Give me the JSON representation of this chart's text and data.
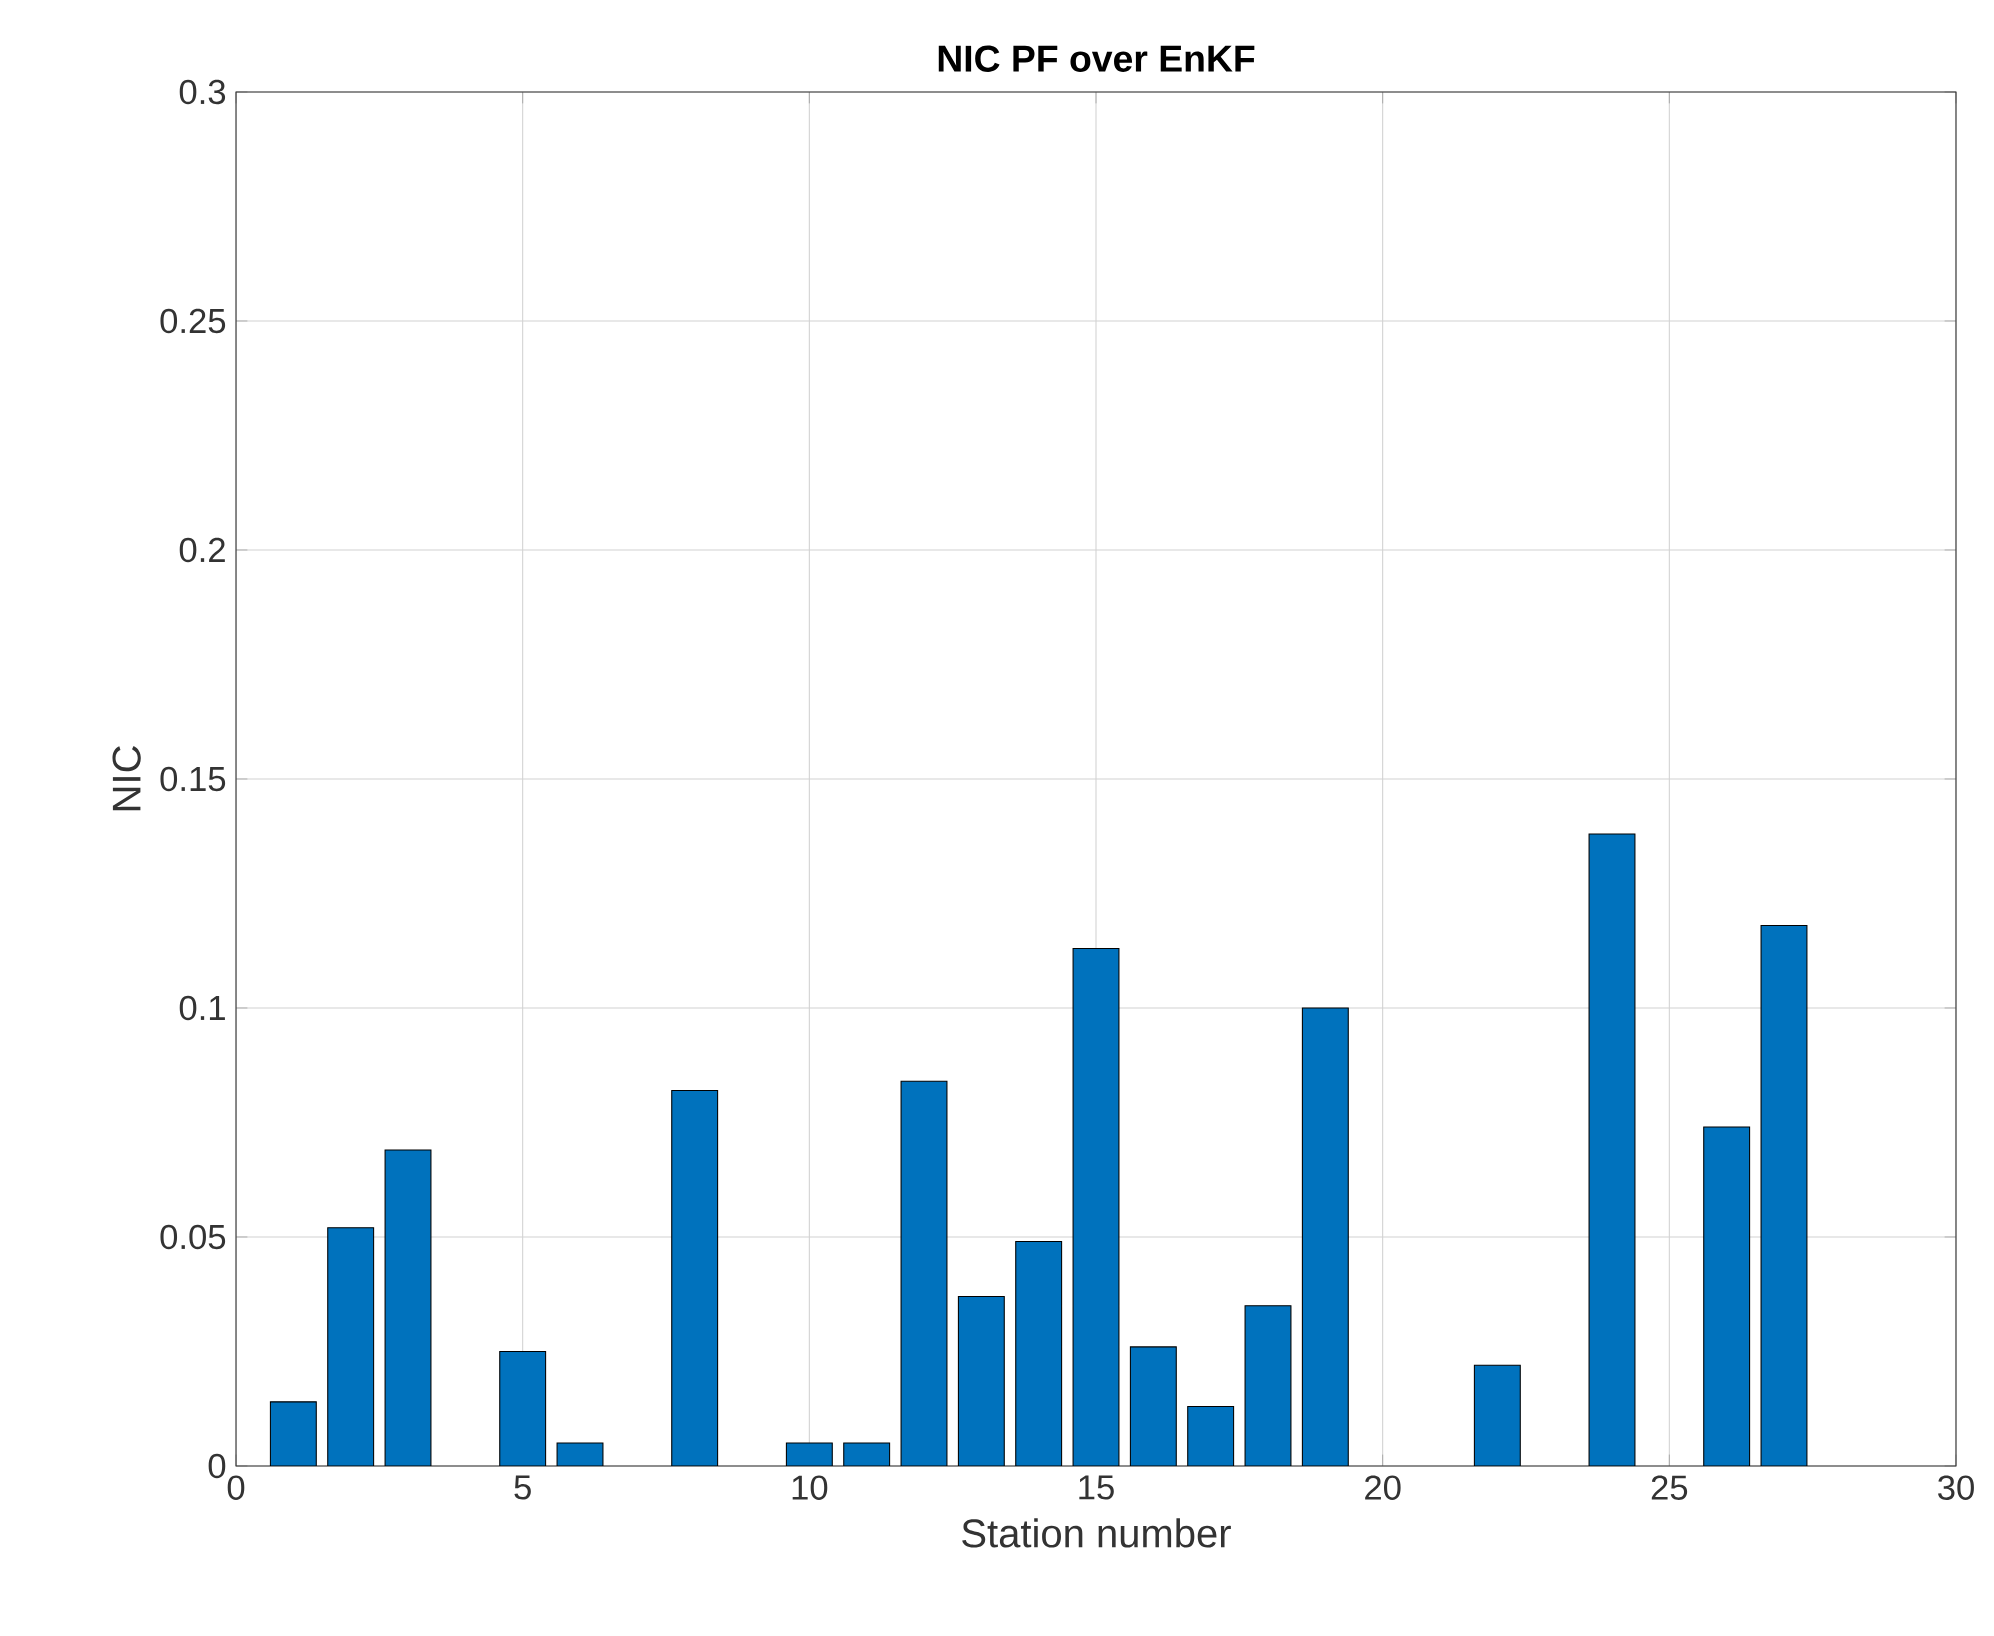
{
  "chart_data": {
    "type": "bar",
    "title": "NIC PF over EnKF",
    "xlabel": "Station number",
    "ylabel": "NIC",
    "x": [
      1,
      2,
      3,
      5,
      6,
      8,
      10,
      11,
      12,
      13,
      14,
      15,
      16,
      17,
      18,
      19,
      22,
      24,
      26,
      27
    ],
    "values": [
      0.014,
      0.052,
      0.069,
      0.025,
      0.005,
      0.082,
      0.005,
      0.005,
      0.084,
      0.037,
      0.049,
      0.113,
      0.026,
      0.013,
      0.035,
      0.1,
      0.022,
      0.138,
      0.074,
      0.118
    ],
    "color": "#0072bd",
    "xlim": [
      0,
      30
    ],
    "xticks": [
      0,
      5,
      10,
      15,
      20,
      25,
      30
    ],
    "ylim": [
      0,
      0.3
    ],
    "yticks": [
      0,
      0.05,
      0.1,
      0.15,
      0.2,
      0.25,
      0.3
    ],
    "grid": true
  }
}
